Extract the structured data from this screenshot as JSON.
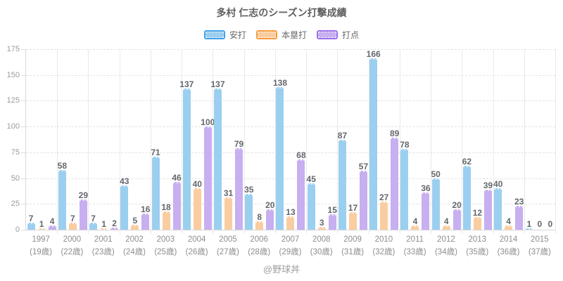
{
  "chart_data": {
    "type": "bar",
    "title": "多村 仁志のシーズン打撃成績",
    "footer": "@野球丼",
    "legend_position": "top",
    "grid": true,
    "ylim": [
      0,
      175
    ],
    "ytick_step": 25,
    "ytick_labels": [
      "0",
      "25",
      "50",
      "75",
      "100",
      "125",
      "150",
      "175"
    ],
    "categories": [
      {
        "year": "1997",
        "age": "(19歳)"
      },
      {
        "year": "2000",
        "age": "(22歳)"
      },
      {
        "year": "2001",
        "age": "(23歳)"
      },
      {
        "year": "2002",
        "age": "(24歳)"
      },
      {
        "year": "2003",
        "age": "(25歳)"
      },
      {
        "year": "2004",
        "age": "(26歳)"
      },
      {
        "year": "2005",
        "age": "(27歳)"
      },
      {
        "year": "2006",
        "age": "(28歳)"
      },
      {
        "year": "2007",
        "age": "(29歳)"
      },
      {
        "year": "2008",
        "age": "(30歳)"
      },
      {
        "year": "2009",
        "age": "(31歳)"
      },
      {
        "year": "2010",
        "age": "(32歳)"
      },
      {
        "year": "2011",
        "age": "(33歳)"
      },
      {
        "year": "2012",
        "age": "(34歳)"
      },
      {
        "year": "2013",
        "age": "(35歳)"
      },
      {
        "year": "2014",
        "age": "(36歳)"
      },
      {
        "year": "2015",
        "age": "(37歳)"
      }
    ],
    "series": [
      {
        "key": "hits",
        "name": "安打",
        "fill": "#9BCFF0",
        "border": "#41A1E8",
        "values": [
          7,
          58,
          7,
          43,
          71,
          137,
          137,
          35,
          138,
          45,
          87,
          166,
          78,
          50,
          62,
          40,
          1
        ]
      },
      {
        "key": "home-runs",
        "name": "本塁打",
        "fill": "#FACDA0",
        "border": "#F79A3C",
        "values": [
          1,
          7,
          1,
          5,
          18,
          40,
          31,
          8,
          13,
          3,
          17,
          27,
          4,
          4,
          12,
          4,
          0
        ]
      },
      {
        "key": "rbi",
        "name": "打点",
        "fill": "#C7AFF0",
        "border": "#9B6FE8",
        "values": [
          4,
          29,
          2,
          16,
          46,
          100,
          79,
          20,
          68,
          15,
          57,
          89,
          36,
          20,
          39,
          23,
          0
        ]
      }
    ]
  }
}
